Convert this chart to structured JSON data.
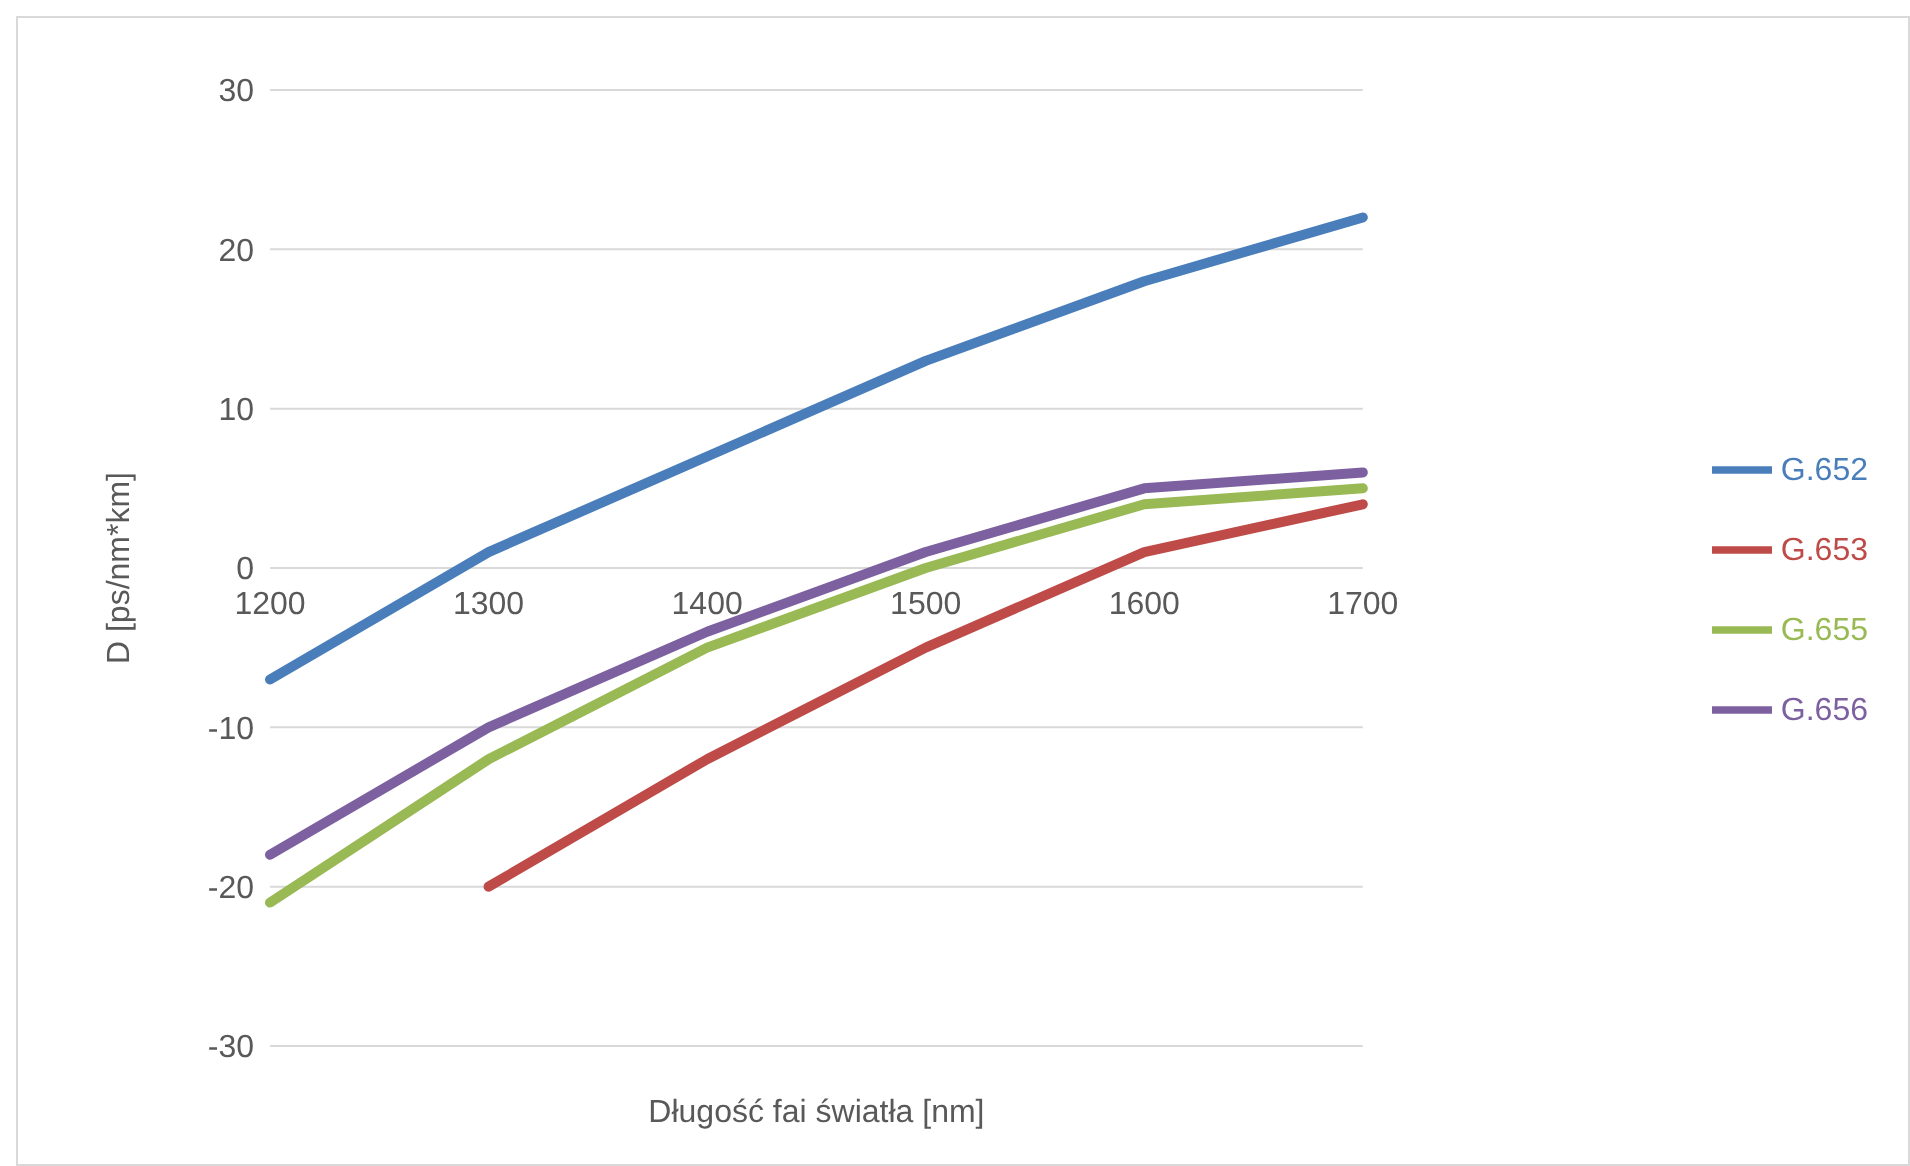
{
  "chart_data": {
    "type": "line",
    "xlabel": "Długość fai światła [nm]",
    "ylabel": "D [ps/nm*km]",
    "categories": [
      "1200",
      "1300",
      "1400",
      "1500",
      "1600",
      "1700"
    ],
    "series": [
      {
        "name": "G.652",
        "color": "#4a7ebb",
        "values": [
          -7,
          1,
          7,
          13,
          18,
          22
        ]
      },
      {
        "name": "G.653",
        "color": "#be4b48",
        "values": [
          null,
          -20,
          -12,
          -5,
          1,
          4
        ]
      },
      {
        "name": "G.655",
        "color": "#98b954",
        "values": [
          -21,
          -12,
          -5,
          0,
          4,
          5
        ]
      },
      {
        "name": "G.656",
        "color": "#7d60a0",
        "values": [
          -18,
          -10,
          -4,
          1,
          5,
          6
        ]
      }
    ],
    "ylim": [
      -30,
      30
    ],
    "yticks": [
      -30,
      -20,
      -10,
      0,
      10,
      20,
      30
    ],
    "grid": "y",
    "legend": "right",
    "marker": "none",
    "line_style": "solid"
  }
}
